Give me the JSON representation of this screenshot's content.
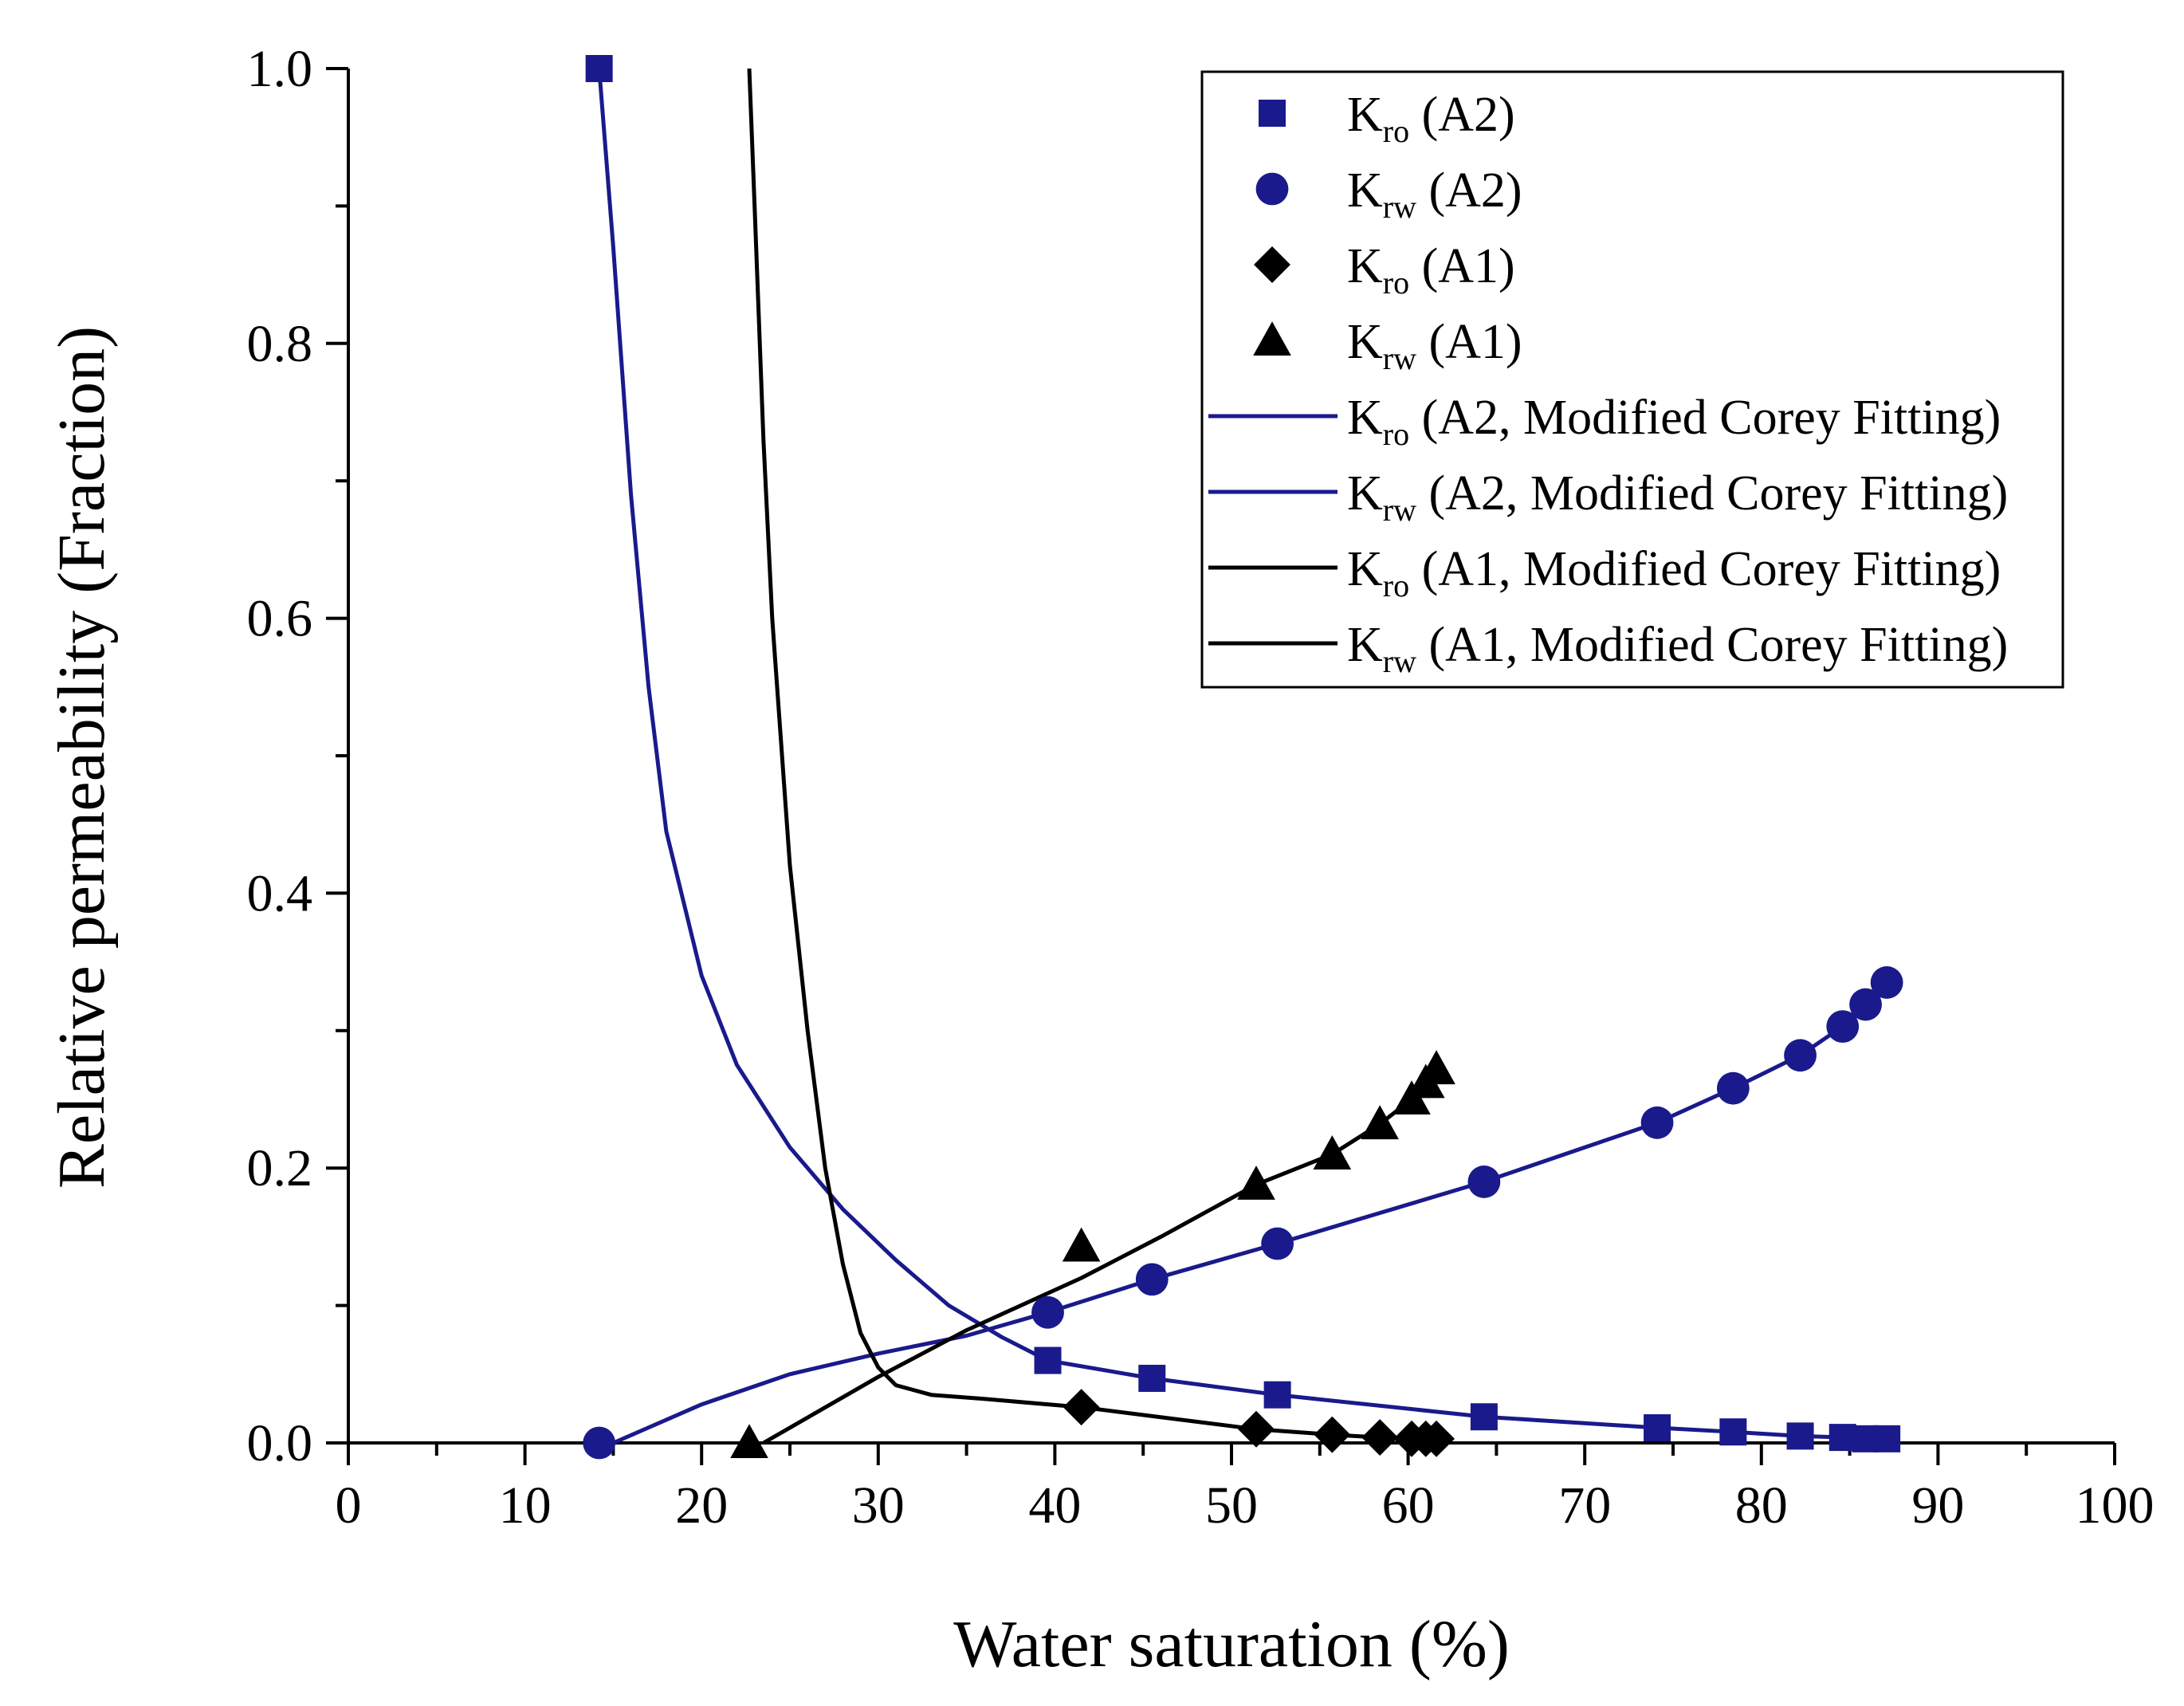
{
  "chart_data": {
    "type": "scatter",
    "xlabel": "Water saturation (%)",
    "ylabel": "Relative permeability (Fraction)",
    "xlim": [
      0,
      100
    ],
    "ylim": [
      0,
      1.0
    ],
    "x_ticks": [
      "0",
      "10",
      "20",
      "30",
      "40",
      "50",
      "60",
      "70",
      "80",
      "90",
      "100"
    ],
    "y_ticks": [
      "0.0",
      "0.2",
      "0.4",
      "0.6",
      "0.8",
      "1.0"
    ],
    "legend_position": "top-right",
    "colors": {
      "A2": "#1a1a8c",
      "A1": "#000000"
    },
    "series": [
      {
        "name": "Kro (A2)",
        "legend": {
          "base": "K",
          "sub": "ro",
          "rest": " (A2)"
        },
        "kind": "points",
        "marker": "square",
        "color": "#1a1a8c",
        "points": [
          [
            14.2,
            1.0
          ],
          [
            39.6,
            0.06
          ],
          [
            45.5,
            0.047
          ],
          [
            52.6,
            0.035
          ],
          [
            64.3,
            0.019
          ],
          [
            74.1,
            0.011
          ],
          [
            78.4,
            0.008
          ],
          [
            82.2,
            0.005
          ],
          [
            84.6,
            0.004
          ],
          [
            85.9,
            0.003
          ],
          [
            87.1,
            0.003
          ]
        ]
      },
      {
        "name": "Krw (A2)",
        "legend": {
          "base": "K",
          "sub": "rw",
          "rest": " (A2)"
        },
        "kind": "points",
        "marker": "circle",
        "color": "#1a1a8c",
        "points": [
          [
            14.2,
            0.0
          ],
          [
            39.6,
            0.095
          ],
          [
            45.5,
            0.119
          ],
          [
            52.6,
            0.145
          ],
          [
            64.3,
            0.19
          ],
          [
            74.1,
            0.233
          ],
          [
            78.4,
            0.258
          ],
          [
            82.2,
            0.282
          ],
          [
            84.6,
            0.303
          ],
          [
            85.9,
            0.319
          ],
          [
            87.1,
            0.335
          ]
        ]
      },
      {
        "name": "Kro (A1)",
        "legend": {
          "base": "K",
          "sub": "ro",
          "rest": " (A1)"
        },
        "kind": "points",
        "marker": "diamond",
        "color": "#000000",
        "points": [
          [
            41.5,
            0.026
          ],
          [
            51.4,
            0.01
          ],
          [
            55.7,
            0.006
          ],
          [
            58.4,
            0.004
          ],
          [
            60.2,
            0.003
          ],
          [
            61.0,
            0.003
          ],
          [
            61.6,
            0.003
          ]
        ]
      },
      {
        "name": "Krw (A1)",
        "legend": {
          "base": "K",
          "sub": "rw",
          "rest": " (A1)"
        },
        "kind": "points",
        "marker": "triangle",
        "color": "#000000",
        "points": [
          [
            22.7,
            0.0
          ],
          [
            41.5,
            0.143
          ],
          [
            51.4,
            0.188
          ],
          [
            55.7,
            0.21
          ],
          [
            58.4,
            0.232
          ],
          [
            60.2,
            0.25
          ],
          [
            61.0,
            0.262
          ],
          [
            61.6,
            0.272
          ]
        ]
      },
      {
        "name": "Kro (A2, Modified Corey Fitting)",
        "legend": {
          "base": "K",
          "sub": "ro",
          "rest": " (A2, Modified Corey Fitting)"
        },
        "kind": "line",
        "color": "#1a1a8c",
        "points": [
          [
            14.2,
            1.0
          ],
          [
            15,
            0.87
          ],
          [
            16,
            0.69
          ],
          [
            17,
            0.55
          ],
          [
            18,
            0.445
          ],
          [
            20,
            0.34
          ],
          [
            22,
            0.275
          ],
          [
            25,
            0.215
          ],
          [
            28,
            0.17
          ],
          [
            31,
            0.133
          ],
          [
            34,
            0.1
          ],
          [
            37,
            0.077
          ],
          [
            39.6,
            0.06
          ],
          [
            45.5,
            0.047
          ],
          [
            52.6,
            0.035
          ],
          [
            64.3,
            0.019
          ],
          [
            74.1,
            0.011
          ],
          [
            78.4,
            0.008
          ],
          [
            82.2,
            0.005
          ],
          [
            87.1,
            0.003
          ]
        ]
      },
      {
        "name": "Krw (A2, Modified Corey Fitting)",
        "legend": {
          "base": "K",
          "sub": "rw",
          "rest": " (A2, Modified Corey Fitting)"
        },
        "kind": "line",
        "color": "#1a1a8c",
        "points": [
          [
            15,
            0.0
          ],
          [
            20,
            0.028
          ],
          [
            25,
            0.05
          ],
          [
            30,
            0.065
          ],
          [
            35,
            0.078
          ],
          [
            39.6,
            0.095
          ],
          [
            45.5,
            0.119
          ],
          [
            52.6,
            0.145
          ],
          [
            64.3,
            0.19
          ],
          [
            74.1,
            0.233
          ],
          [
            78.4,
            0.258
          ],
          [
            82.2,
            0.282
          ],
          [
            84.6,
            0.303
          ],
          [
            85.9,
            0.319
          ],
          [
            87.1,
            0.335
          ]
        ]
      },
      {
        "name": "Kro (A1, Modified Corey Fitting)",
        "legend": {
          "base": "K",
          "sub": "ro",
          "rest": " (A1, Modified Corey Fitting)"
        },
        "kind": "line",
        "color": "#000000",
        "points": [
          [
            22.7,
            1.0
          ],
          [
            23.0,
            0.9
          ],
          [
            23.5,
            0.73
          ],
          [
            24,
            0.6
          ],
          [
            25,
            0.42
          ],
          [
            26,
            0.3
          ],
          [
            27,
            0.2
          ],
          [
            28,
            0.13
          ],
          [
            29,
            0.08
          ],
          [
            30,
            0.055
          ],
          [
            31,
            0.042
          ],
          [
            33,
            0.035
          ],
          [
            36,
            0.032
          ],
          [
            41.5,
            0.026
          ],
          [
            51.4,
            0.01
          ],
          [
            55.7,
            0.006
          ],
          [
            58.4,
            0.004
          ],
          [
            61.6,
            0.003
          ]
        ]
      },
      {
        "name": "Krw (A1, Modified Corey Fitting)",
        "legend": {
          "base": "K",
          "sub": "rw",
          "rest": " (A1, Modified Corey Fitting)"
        },
        "kind": "line",
        "color": "#000000",
        "points": [
          [
            23.5,
            0.0
          ],
          [
            30,
            0.048
          ],
          [
            35,
            0.082
          ],
          [
            41.5,
            0.12
          ],
          [
            46,
            0.15
          ],
          [
            51.4,
            0.188
          ],
          [
            55.7,
            0.21
          ],
          [
            58.4,
            0.232
          ],
          [
            60.2,
            0.25
          ],
          [
            61.0,
            0.262
          ],
          [
            61.6,
            0.272
          ]
        ]
      }
    ]
  }
}
